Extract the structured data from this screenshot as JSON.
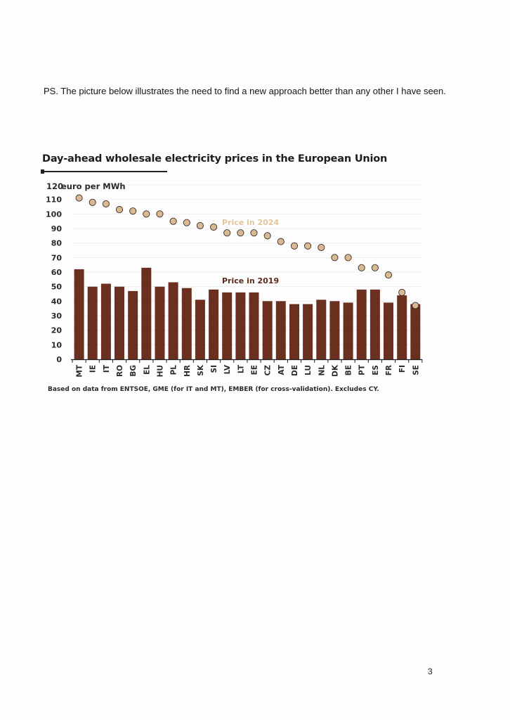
{
  "ps_text": "PS. The picture below illustrates the need to find a new approach better than any other I have seen.",
  "page_number": "3",
  "colors": {
    "bar_2019": "#6b2f1f",
    "dot_2024": "#d9b994",
    "dot_outline": "#3a2a20",
    "annotation_2024": "#e1c79a",
    "annotation_2019": "#5a2a1a"
  },
  "chart_data": {
    "type": "bar",
    "title": "Day-ahead wholesale electricity prices in the European Union",
    "unit_label": "euro per MWh",
    "source_note": "Based on data from ENTSOE, GME (for IT and MT), EMBER (for cross-validation). Excludes CY.",
    "ylim": [
      0,
      120
    ],
    "yticks": [
      0,
      10,
      20,
      30,
      40,
      50,
      60,
      70,
      80,
      90,
      100,
      110,
      120
    ],
    "grid": true,
    "categories": [
      "MT",
      "IE",
      "IT",
      "RO",
      "BG",
      "EL",
      "HU",
      "PL",
      "HR",
      "SK",
      "SI",
      "LV",
      "LT",
      "EE",
      "CZ",
      "AT",
      "DE",
      "LU",
      "NL",
      "DK",
      "BE",
      "PT",
      "ES",
      "FR",
      "FI",
      "SE"
    ],
    "series": [
      {
        "name": "Price in 2019",
        "mark": "bar",
        "values": [
          62,
          50,
          52,
          50,
          47,
          63,
          50,
          53,
          49,
          41,
          48,
          46,
          46,
          46,
          40,
          40,
          38,
          38,
          41,
          40,
          39,
          48,
          48,
          39,
          44,
          38
        ]
      },
      {
        "name": "Price in 2024",
        "mark": "dot",
        "values": [
          111,
          108,
          107,
          103,
          102,
          100,
          100,
          95,
          94,
          92,
          91,
          87,
          87,
          87,
          85,
          81,
          78,
          78,
          77,
          70,
          70,
          63,
          63,
          58,
          46,
          37
        ]
      }
    ]
  }
}
